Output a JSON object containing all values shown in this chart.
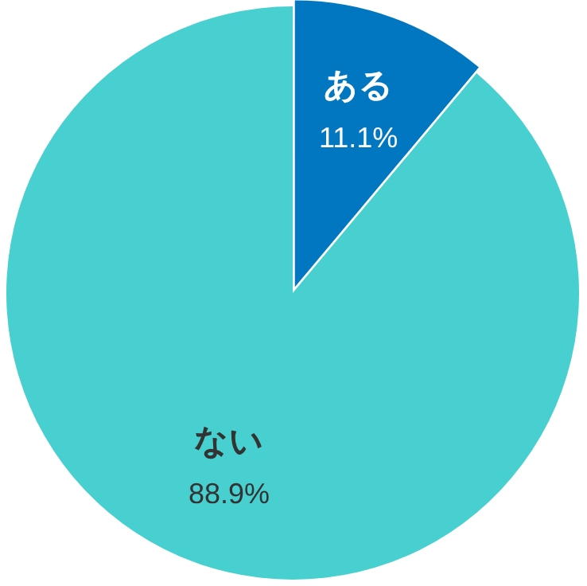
{
  "chart_data": {
    "type": "pie",
    "categories": [
      "ある",
      "ない"
    ],
    "values": [
      11.1,
      88.9
    ],
    "colors": [
      "#0077c0",
      "#48cfcf"
    ],
    "value_labels": [
      "11.1%",
      "88.9%"
    ]
  }
}
